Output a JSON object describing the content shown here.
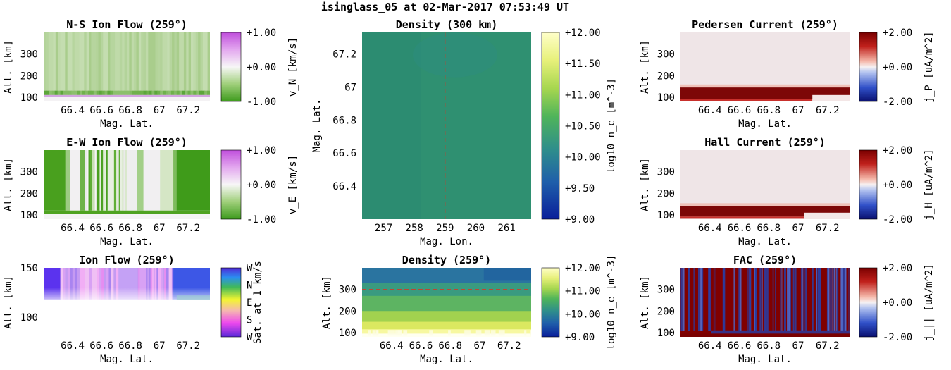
{
  "figure": {
    "title": "isinglass_05 at 02-Mar-2017 07:53:49 UT"
  },
  "chart_data": [
    {
      "id": "ns-ion-flow",
      "type": "heatmap",
      "title": "N-S Ion Flow (259°)",
      "xlabel": "Mag. Lat.",
      "ylabel": "Alt. [km]",
      "xlim": [
        66.2,
        67.35
      ],
      "ylim": [
        80,
        400
      ],
      "xticks": [
        "66.4",
        "66.6",
        "66.8",
        "67",
        "67.2"
      ],
      "yticks": [
        "100",
        "200",
        "300"
      ],
      "colorbar": {
        "label": "v_N [km/s]",
        "colormap": "purple-white-green",
        "range": [
          -1.0,
          1.0
        ],
        "ticks": [
          "+1.00",
          "+0.00",
          "-1.00"
        ]
      }
    },
    {
      "id": "ew-ion-flow",
      "type": "heatmap",
      "title": "E-W Ion Flow (259°)",
      "xlabel": "Mag. Lat.",
      "ylabel": "Alt. [km]",
      "xlim": [
        66.2,
        67.35
      ],
      "ylim": [
        80,
        400
      ],
      "xticks": [
        "66.4",
        "66.6",
        "66.8",
        "67",
        "67.2"
      ],
      "yticks": [
        "100",
        "200",
        "300"
      ],
      "colorbar": {
        "label": "v_E [km/s]",
        "colormap": "purple-white-green",
        "range": [
          -1.0,
          1.0
        ],
        "ticks": [
          "+1.00",
          "+0.00",
          "-1.00"
        ]
      }
    },
    {
      "id": "ion-flow",
      "type": "heatmap",
      "title": "Ion Flow (259°)",
      "xlabel": "Mag. Lat.",
      "ylabel": "Alt. [km]",
      "xlim": [
        66.2,
        67.35
      ],
      "ylim": [
        80,
        150
      ],
      "xticks": [
        "66.4",
        "66.6",
        "66.8",
        "67",
        "67.2"
      ],
      "yticks": [
        "100",
        "150"
      ],
      "colorbar": {
        "label": "Sat. at 1 km/s",
        "colormap": "direction-wheel",
        "ticks": [
          "W",
          "N",
          "E",
          "S",
          "W"
        ]
      }
    },
    {
      "id": "density-300",
      "type": "heatmap",
      "title": "Density (300 km)",
      "xlabel": "Mag. Lon.",
      "ylabel": "Mag. Lat.",
      "xlim": [
        256.3,
        261.8
      ],
      "ylim": [
        66.2,
        67.33
      ],
      "xticks": [
        "257",
        "258",
        "259",
        "260",
        "261"
      ],
      "yticks": [
        "66.4",
        "66.6",
        "66.8",
        "67",
        "67.2"
      ],
      "reference_line": {
        "axis": "x",
        "value": 259
      },
      "colorbar": {
        "label": "log10 n_e [m^-3]",
        "colormap": "yellow-green-blue",
        "range": [
          9.0,
          12.0
        ],
        "ticks": [
          "+12.00",
          "+11.50",
          "+11.00",
          "+10.50",
          "+10.00",
          "+9.50",
          "+9.00"
        ]
      }
    },
    {
      "id": "density-259",
      "type": "heatmap",
      "title": "Density (259°)",
      "xlabel": "Mag. Lat.",
      "ylabel": "Alt. [km]",
      "xlim": [
        66.2,
        67.35
      ],
      "ylim": [
        80,
        400
      ],
      "xticks": [
        "66.4",
        "66.6",
        "66.8",
        "67",
        "67.2"
      ],
      "yticks": [
        "100",
        "200",
        "300"
      ],
      "reference_line": {
        "axis": "y",
        "value": 300
      },
      "colorbar": {
        "label": "log10 n_e [m^-3]",
        "colormap": "yellow-green-blue",
        "range": [
          9.0,
          12.0
        ],
        "ticks": [
          "+12.00",
          "+11.00",
          "+10.00",
          "+9.00"
        ]
      }
    },
    {
      "id": "pedersen-current",
      "type": "heatmap",
      "title": "Pedersen Current (259°)",
      "xlabel": "Mag. Lat.",
      "ylabel": "Alt. [km]",
      "xlim": [
        66.2,
        67.35
      ],
      "ylim": [
        80,
        400
      ],
      "xticks": [
        "66.4",
        "66.6",
        "66.8",
        "67",
        "67.2"
      ],
      "yticks": [
        "100",
        "200",
        "300"
      ],
      "colorbar": {
        "label": "j_P [uA/m^2]",
        "colormap": "blue-white-red",
        "range": [
          -2.0,
          2.0
        ],
        "ticks": [
          "+2.00",
          "+0.00",
          "-2.00"
        ]
      }
    },
    {
      "id": "hall-current",
      "type": "heatmap",
      "title": "Hall Current (259°)",
      "xlabel": "Mag. Lat.",
      "ylabel": "Alt. [km]",
      "xlim": [
        66.2,
        67.35
      ],
      "ylim": [
        80,
        400
      ],
      "xticks": [
        "66.4",
        "66.6",
        "66.8",
        "67",
        "67.2"
      ],
      "yticks": [
        "100",
        "200",
        "300"
      ],
      "colorbar": {
        "label": "j_H [uA/m^2]",
        "colormap": "blue-white-red",
        "range": [
          -2.0,
          2.0
        ],
        "ticks": [
          "+2.00",
          "+0.00",
          "-2.00"
        ]
      }
    },
    {
      "id": "fac",
      "type": "heatmap",
      "title": "FAC (259°)",
      "xlabel": "Mag. Lat.",
      "ylabel": "Alt. [km]",
      "xlim": [
        66.2,
        67.35
      ],
      "ylim": [
        80,
        400
      ],
      "xticks": [
        "66.4",
        "66.6",
        "66.8",
        "67",
        "67.2"
      ],
      "yticks": [
        "100",
        "200",
        "300"
      ],
      "colorbar": {
        "label": "j_|| [uA/m^2]",
        "colormap": "blue-white-red",
        "range": [
          -2.0,
          2.0
        ],
        "ticks": [
          "+2.00",
          "+0.00",
          "-2.00"
        ]
      }
    }
  ]
}
